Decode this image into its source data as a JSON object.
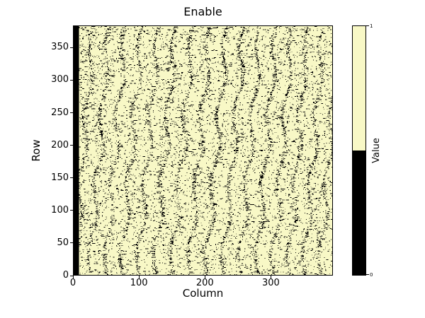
{
  "chart_data": {
    "type": "heatmap",
    "title": "Enable",
    "xlabel": "Column",
    "ylabel": "Row",
    "x_ticks": [
      0,
      100,
      200,
      300
    ],
    "y_ticks": [
      0,
      50,
      100,
      150,
      200,
      250,
      300,
      350
    ],
    "x_range": [
      0,
      394
    ],
    "y_range": [
      0,
      384
    ],
    "grid": false,
    "legend": "none",
    "colors": {
      "value1": "#f8f8c6",
      "value0": "#000000"
    },
    "colorbar": {
      "label": "Value",
      "tick_top": "1",
      "tick_bottom": "0",
      "orientation": "vertical",
      "split": "top half = 1 (pale yellow), bottom half = 0 (black)"
    },
    "pattern": {
      "description": "binary matrix, mostly value 1 (pale yellow); sparse value-0 (black) pixels forming wavy, slightly tilted vertical streaks repeating roughly every 25 columns; columns 0-7 are entirely value 0 (solid black band at left edge)",
      "solid_zero_columns": 8,
      "streak_period_columns": 25,
      "approx_zero_fraction": 0.1,
      "seed": 1337
    }
  }
}
